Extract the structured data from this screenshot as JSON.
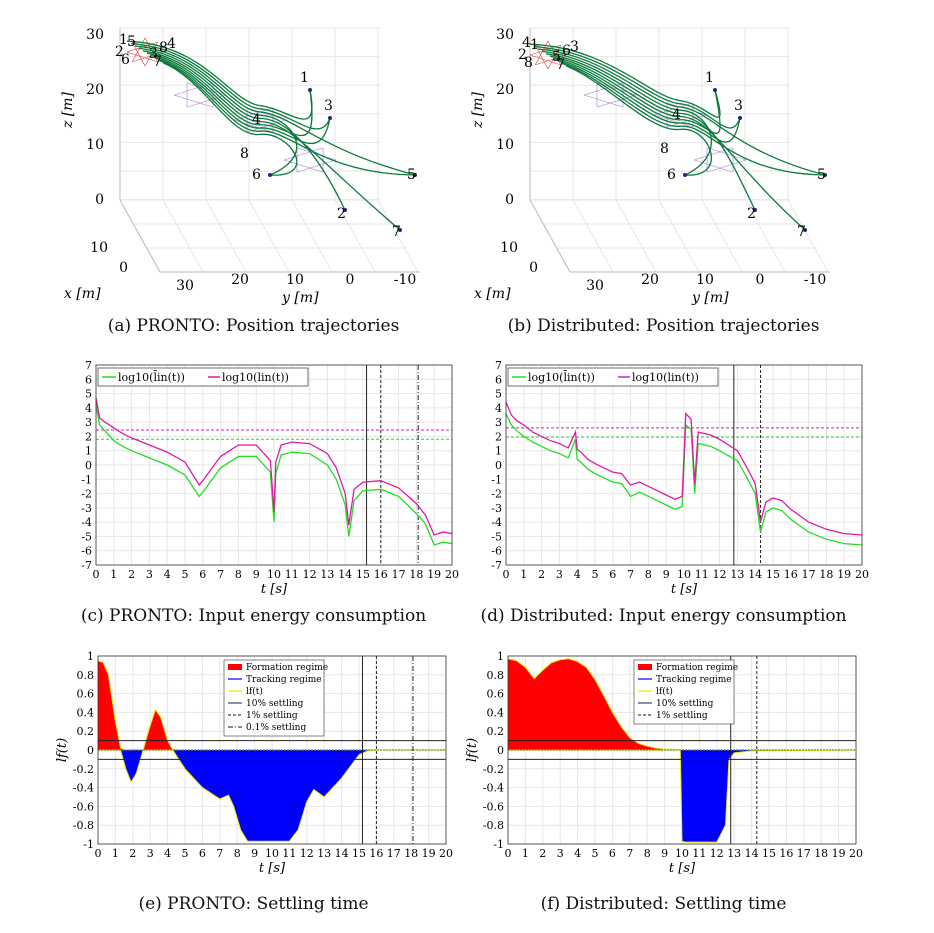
{
  "captions": {
    "a": "(a) PRONTO: Position trajectories",
    "b": "(b) Distributed: Position trajectories",
    "c": "(c) PRONTO: Input energy consumption",
    "d": "(d) Distributed: Input energy consumption",
    "e": "(e) PRONTO: Settling time",
    "f": "(f) Distributed: Settling time"
  },
  "colors": {
    "trajectory": "#0b7a3b",
    "edge_formation": "#e03a3a",
    "edge_graph": "#9a7ad8",
    "edge_blue": "#3a4ad8",
    "green_series": "#22dd22",
    "magenta_series": "#dd1aa8",
    "formation_fill": "#ff0000",
    "tracking_fill": "#0000ff",
    "lf_line": "#e8e800",
    "grid": "#e6e6e6"
  },
  "chart_data": [
    {
      "id": "a",
      "type": "scatter",
      "title": "",
      "xlabel": "x [m]",
      "ylabel": "y [m]",
      "zlabel": "z [m]",
      "z_ticks": [
        "0",
        "10",
        "20",
        "30"
      ],
      "x_ticks": [
        "10",
        "0"
      ],
      "y_ticks": [
        "30",
        "20",
        "10",
        "0",
        "-10"
      ],
      "agent_labels": [
        {
          "text": "1",
          "x": 0,
          "y": 0,
          "z": 0
        },
        {
          "text": "2",
          "x": 0,
          "y": 0,
          "z": 0
        },
        {
          "text": "3",
          "x": 0,
          "y": 0,
          "z": 0
        },
        {
          "text": "4",
          "x": 0,
          "y": 0,
          "z": 0
        },
        {
          "text": "5",
          "x": 0,
          "y": 0,
          "z": 0
        },
        {
          "text": "6",
          "x": 0,
          "y": 0,
          "z": 0
        },
        {
          "text": "7",
          "x": 0,
          "y": 0,
          "z": 0
        },
        {
          "text": "8",
          "x": 0,
          "y": 0,
          "z": 0
        }
      ],
      "start_labels": [
        "1",
        "5",
        "4",
        "2",
        "3",
        "6",
        "8",
        "7"
      ],
      "waypoint_label": "4",
      "waypoint_label_2": "8",
      "end_labels": [
        "1",
        "3",
        "5",
        "6",
        "2",
        "7"
      ]
    },
    {
      "id": "b",
      "type": "scatter",
      "xlabel": "x [m]",
      "ylabel": "y [m]",
      "zlabel": "z [m]",
      "z_ticks": [
        "0",
        "10",
        "20",
        "30"
      ],
      "x_ticks": [
        "10",
        "0"
      ],
      "y_ticks": [
        "30",
        "20",
        "10",
        "0",
        "-10"
      ],
      "start_labels": [
        "4",
        "1",
        "3",
        "2",
        "5",
        "8",
        "6",
        "7"
      ],
      "waypoint_label": "4",
      "waypoint_label_2": "8",
      "end_labels": [
        "1",
        "3",
        "5",
        "6",
        "2",
        "7"
      ]
    },
    {
      "id": "c",
      "type": "line",
      "xlabel": "t [s]",
      "ylabel": "",
      "xlim": [
        0,
        20
      ],
      "ylim": [
        -7,
        7
      ],
      "x_ticks": [
        0,
        1,
        2,
        3,
        4,
        5,
        6,
        7,
        8,
        9,
        10,
        11,
        12,
        13,
        14,
        15,
        16,
        17,
        18,
        19,
        20
      ],
      "y_ticks": [
        -7,
        -6,
        -5,
        -4,
        -3,
        -2,
        -1,
        0,
        1,
        2,
        3,
        4,
        5,
        6,
        7
      ],
      "legend": [
        "log10(l̄in(t))",
        "log10(lin(t))"
      ],
      "legend_position": "top-left",
      "hlines": [
        {
          "y": 1.8,
          "color": "green"
        },
        {
          "y": 2.45,
          "color": "magenta"
        }
      ],
      "vlines": [
        {
          "x": 15.2,
          "style": "solid"
        },
        {
          "x": 16.0,
          "style": "dashed"
        },
        {
          "x": 18.1,
          "style": "dashdot"
        }
      ],
      "series": [
        {
          "name": "green",
          "x": [
            0,
            0.2,
            0.5,
            1,
            1.5,
            2,
            3,
            4,
            5,
            5.8,
            6,
            7,
            8,
            9,
            9.8,
            10,
            10.1,
            10.4,
            11,
            12,
            13,
            13.5,
            14,
            14.2,
            14.5,
            15,
            16,
            17,
            18,
            18.5,
            19,
            19.5,
            20
          ],
          "y": [
            4.2,
            2.8,
            2.4,
            1.7,
            1.3,
            1.0,
            0.5,
            0.0,
            -0.7,
            -2.2,
            -1.9,
            -0.2,
            0.6,
            0.6,
            -0.5,
            -4.0,
            -0.6,
            0.7,
            0.9,
            0.8,
            0.0,
            -1.0,
            -2.8,
            -5.0,
            -2.5,
            -1.8,
            -1.7,
            -2.2,
            -3.4,
            -4.1,
            -5.6,
            -5.4,
            -5.5
          ]
        },
        {
          "name": "magenta",
          "x": [
            0,
            0.2,
            0.5,
            1,
            1.5,
            2,
            3,
            4,
            5,
            5.8,
            6,
            7,
            8,
            9,
            9.8,
            10,
            10.1,
            10.4,
            11,
            12,
            13,
            13.5,
            14,
            14.2,
            14.5,
            15,
            16,
            17,
            18,
            18.5,
            19,
            19.5,
            20
          ],
          "y": [
            4.7,
            3.3,
            3.0,
            2.6,
            2.2,
            1.9,
            1.4,
            0.9,
            0.2,
            -1.4,
            -1.1,
            0.6,
            1.4,
            1.4,
            0.3,
            -3.3,
            0.2,
            1.4,
            1.6,
            1.5,
            0.8,
            -0.2,
            -2.0,
            -4.2,
            -1.7,
            -1.2,
            -1.1,
            -1.6,
            -2.7,
            -3.5,
            -4.9,
            -4.7,
            -4.8
          ]
        }
      ]
    },
    {
      "id": "d",
      "type": "line",
      "xlabel": "t [s]",
      "xlim": [
        0,
        20
      ],
      "ylim": [
        -7,
        7
      ],
      "x_ticks": [
        0,
        1,
        2,
        3,
        4,
        5,
        6,
        7,
        8,
        9,
        10,
        11,
        12,
        13,
        14,
        15,
        16,
        17,
        18,
        19,
        20
      ],
      "y_ticks": [
        -7,
        -6,
        -5,
        -4,
        -3,
        -2,
        -1,
        0,
        1,
        2,
        3,
        4,
        5,
        6,
        7
      ],
      "legend": [
        "log10(l̄in(t))",
        "log10(lin(t))"
      ],
      "legend_position": "top-left",
      "hlines": [
        {
          "y": 1.95,
          "color": "green"
        },
        {
          "y": 2.6,
          "color": "magenta"
        }
      ],
      "vlines": [
        {
          "x": 12.8,
          "style": "solid"
        },
        {
          "x": 14.3,
          "style": "dashed"
        }
      ],
      "series": [
        {
          "name": "green",
          "x": [
            0,
            0.3,
            0.6,
            1,
            1.5,
            2,
            2.5,
            3,
            3.5,
            3.9,
            4,
            4.2,
            4.6,
            5,
            5.5,
            6,
            6.5,
            7,
            7.5,
            8,
            8.5,
            9,
            9.5,
            9.9,
            10.1,
            10.4,
            10.6,
            10.8,
            11.5,
            12,
            13,
            13.5,
            14,
            14.3,
            14.6,
            15,
            15.5,
            16,
            17,
            18,
            19,
            20
          ],
          "y": [
            3.6,
            2.8,
            2.4,
            2.0,
            1.6,
            1.3,
            1.0,
            0.8,
            0.5,
            1.8,
            0.4,
            0.2,
            -0.3,
            -0.6,
            -0.9,
            -1.2,
            -1.3,
            -2.2,
            -1.9,
            -2.2,
            -2.5,
            -2.8,
            -3.1,
            -2.9,
            2.8,
            2.5,
            -2.0,
            1.5,
            1.3,
            1.0,
            0.3,
            -0.8,
            -2.0,
            -4.7,
            -3.3,
            -3.0,
            -3.2,
            -3.8,
            -4.7,
            -5.2,
            -5.5,
            -5.6
          ]
        },
        {
          "name": "magenta",
          "x": [
            0,
            0.3,
            0.6,
            1,
            1.5,
            2,
            2.5,
            3,
            3.5,
            3.9,
            4,
            4.2,
            4.6,
            5,
            5.5,
            6,
            6.5,
            7,
            7.5,
            8,
            8.5,
            9,
            9.5,
            9.9,
            10.1,
            10.4,
            10.6,
            10.8,
            11.5,
            12,
            13,
            13.5,
            14,
            14.3,
            14.6,
            15,
            15.5,
            16,
            17,
            18,
            19,
            20
          ],
          "y": [
            4.4,
            3.5,
            3.1,
            2.8,
            2.3,
            2.0,
            1.7,
            1.5,
            1.2,
            2.3,
            1.1,
            0.9,
            0.4,
            0.1,
            -0.2,
            -0.5,
            -0.6,
            -1.4,
            -1.2,
            -1.5,
            -1.8,
            -2.1,
            -2.4,
            -2.2,
            3.6,
            3.2,
            -1.3,
            2.3,
            2.1,
            1.8,
            1.0,
            -0.1,
            -1.3,
            -4.0,
            -2.6,
            -2.3,
            -2.5,
            -3.1,
            -4.0,
            -4.5,
            -4.8,
            -4.9
          ]
        }
      ]
    },
    {
      "id": "e",
      "type": "area",
      "xlabel": "t [s]",
      "ylabel": "lf(t)",
      "xlim": [
        0,
        20
      ],
      "ylim": [
        -1,
        1
      ],
      "x_ticks": [
        0,
        1,
        2,
        3,
        4,
        5,
        6,
        7,
        8,
        9,
        10,
        11,
        12,
        13,
        14,
        15,
        16,
        17,
        18,
        19,
        20
      ],
      "y_ticks": [
        -1,
        -0.8,
        -0.6,
        -0.4,
        -0.2,
        0,
        0.2,
        0.4,
        0.6,
        0.8,
        1
      ],
      "legend": [
        "Formation regime",
        "Tracking regime",
        "lf(t)",
        "10% settling",
        "1% settling",
        "0.1% settling"
      ],
      "legend_position": "top-center",
      "hlines": [
        {
          "y": 0.1
        },
        {
          "y": -0.1
        }
      ],
      "vlines": [
        {
          "x": 15.2,
          "style": "solid"
        },
        {
          "x": 16.0,
          "style": "dashed"
        },
        {
          "x": 18.1,
          "style": "dashdot"
        }
      ],
      "formation": {
        "x": [
          0,
          0.3,
          0.6,
          1.0,
          1.3,
          1.6,
          2.6,
          2.9,
          3.3,
          3.6,
          4.0,
          4.3
        ],
        "y": [
          0.95,
          0.93,
          0.8,
          0.3,
          0.02,
          0,
          0,
          0.2,
          0.43,
          0.35,
          0.1,
          0
        ]
      },
      "tracking": {
        "x": [
          0,
          1.3,
          1.6,
          1.9,
          2.2,
          2.6,
          4.3,
          5,
          6,
          7,
          7.5,
          7.8,
          8.2,
          8.6,
          9,
          10,
          11,
          11.5,
          12,
          12.4,
          13,
          14,
          15,
          15.5,
          16,
          20
        ],
        "y": [
          0,
          0,
          -0.2,
          -0.34,
          -0.25,
          0,
          0,
          -0.2,
          -0.4,
          -0.52,
          -0.48,
          -0.6,
          -0.85,
          -0.97,
          -0.97,
          -0.97,
          -0.97,
          -0.85,
          -0.55,
          -0.42,
          -0.5,
          -0.3,
          -0.05,
          -0.01,
          0,
          0
        ]
      }
    },
    {
      "id": "f",
      "type": "area",
      "xlabel": "t [s]",
      "ylabel": "lf(t)",
      "xlim": [
        0,
        20
      ],
      "ylim": [
        -1,
        1
      ],
      "x_ticks": [
        0,
        1,
        2,
        3,
        4,
        5,
        6,
        7,
        8,
        9,
        10,
        11,
        12,
        13,
        14,
        15,
        16,
        17,
        18,
        19,
        20
      ],
      "y_ticks": [
        -1,
        -0.8,
        -0.6,
        -0.4,
        -0.2,
        0,
        0.2,
        0.4,
        0.6,
        0.8,
        1
      ],
      "legend": [
        "Formation regime",
        "Tracking regime",
        "lf(t)",
        "10% settling",
        "1% settling"
      ],
      "legend_position": "top-center",
      "hlines": [
        {
          "y": 0.1
        },
        {
          "y": -0.1
        }
      ],
      "vlines": [
        {
          "x": 12.8,
          "style": "solid"
        },
        {
          "x": 14.3,
          "style": "dashed"
        }
      ],
      "formation": {
        "x": [
          0,
          0.5,
          1,
          1.5,
          2,
          2.5,
          3,
          3.5,
          4,
          4.5,
          5,
          5.5,
          6,
          6.5,
          7,
          7.5,
          8,
          8.5,
          9,
          9.5,
          10
        ],
        "y": [
          0.97,
          0.95,
          0.88,
          0.76,
          0.85,
          0.93,
          0.96,
          0.97,
          0.94,
          0.88,
          0.75,
          0.58,
          0.4,
          0.25,
          0.13,
          0.07,
          0.04,
          0.02,
          0.01,
          0.005,
          0
        ]
      },
      "tracking": {
        "x": [
          0,
          9.9,
          10,
          10.2,
          11,
          12,
          12.5,
          12.7,
          13,
          14,
          20
        ],
        "y": [
          0,
          0,
          -0.97,
          -0.98,
          -0.98,
          -0.98,
          -0.8,
          -0.1,
          -0.03,
          -0.01,
          0
        ]
      }
    }
  ]
}
